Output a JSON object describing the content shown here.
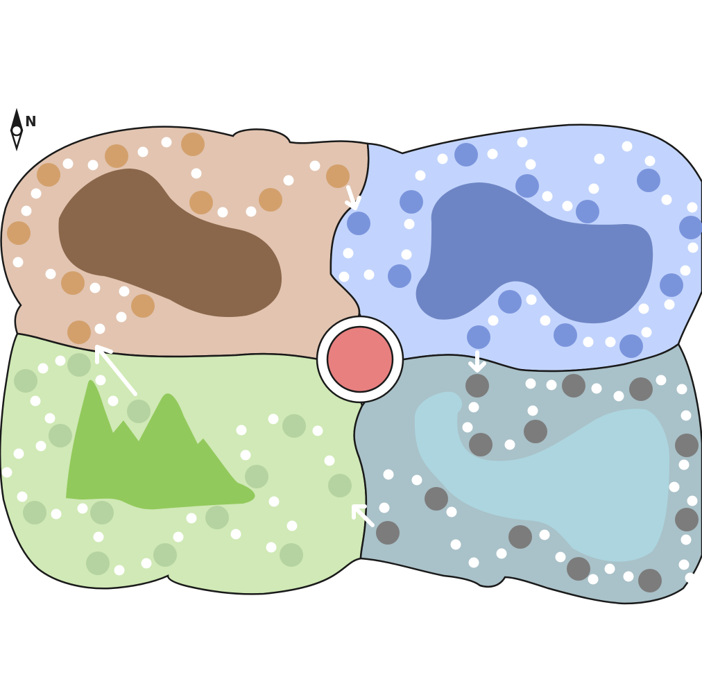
{
  "compass": {
    "label": "N"
  },
  "colors": {
    "outline": "#1a1a1a",
    "spot": "#ffffff",
    "hub": "#e98080",
    "hub_ring": "#ffffff",
    "regions": {
      "nw": {
        "fill": "#e2c4b0",
        "terrain": "#8a674b",
        "token": "#d3a06c"
      },
      "ne": {
        "fill": "#c2d4fd",
        "terrain": "#6e85c5",
        "token": "#7a94dc"
      },
      "sw": {
        "fill": "#d0e9b6",
        "terrain": "#92c95c",
        "token": "#b5d3a0"
      },
      "se": {
        "fill": "#a9c1c8",
        "terrain": "#acd5df",
        "token": "#7c7c7c"
      }
    }
  },
  "board": {
    "regions": [
      {
        "id": "nw",
        "name": "north-west",
        "terrain": "hills-blob"
      },
      {
        "id": "ne",
        "name": "north-east",
        "terrain": "lake-blob"
      },
      {
        "id": "sw",
        "name": "south-west",
        "terrain": "mountains"
      },
      {
        "id": "se",
        "name": "south-east",
        "terrain": "water"
      }
    ],
    "center": {
      "id": "hub",
      "shape": "red-circle"
    },
    "arrows_count": 4
  }
}
